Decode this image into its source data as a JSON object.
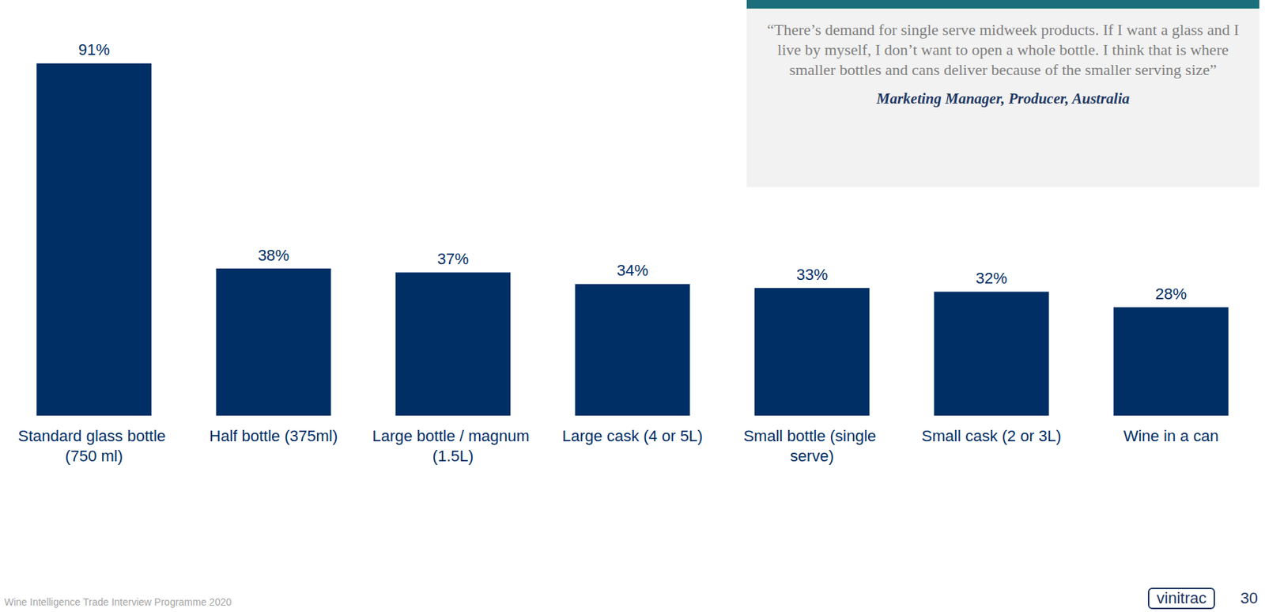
{
  "chart_data": {
    "type": "bar",
    "categories": [
      "Standard glass bottle (750 ml)",
      "Half bottle (375ml)",
      "Large bottle / magnum (1.5L)",
      "Large cask (4 or 5L)",
      "Small bottle (single serve)",
      "Small cask (2 or 3L)",
      "Wine in a can"
    ],
    "values": [
      91,
      38,
      37,
      34,
      33,
      32,
      28
    ],
    "value_labels": [
      "91%",
      "38%",
      "37%",
      "34%",
      "33%",
      "32%",
      "28%"
    ],
    "color": "#002f66",
    "ylim": [
      0,
      100
    ],
    "yticks": [
      0,
      100
    ],
    "grid": false,
    "data_labels": true,
    "tick_labels": "x",
    "quote": "“There’s demand for single serve midweek products. If I want a glass and I live by myself, I don’t want to open a whole bottle. I think that is where smaller bottles and cans deliver because of the smaller serving size”",
    "quote_source": "Marketing Manager, Producer, Australia",
    "footer": "Wine Intelligence Trade Interview Programme 2020",
    "logo": "vinitrac",
    "page_number": 30
  }
}
